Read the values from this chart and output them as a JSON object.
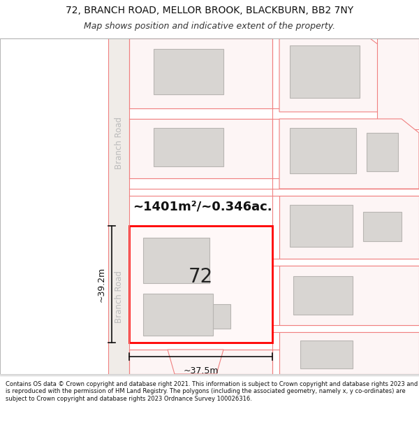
{
  "title_line1": "72, BRANCH ROAD, MELLOR BROOK, BLACKBURN, BB2 7NY",
  "title_line2": "Map shows position and indicative extent of the property.",
  "footer_text": "Contains OS data © Crown copyright and database right 2021. This information is subject to Crown copyright and database rights 2023 and is reproduced with the permission of HM Land Registry. The polygons (including the associated geometry, namely x, y co-ordinates) are subject to Crown copyright and database rights 2023 Ordnance Survey 100026316.",
  "map_bg": "#ffffff",
  "plot_outline_color": "#ff0000",
  "building_fill": "#d8d5d2",
  "building_edge": "#b8b5b2",
  "property_label": "72",
  "area_label": "~1401m²/~0.346ac.",
  "width_label": "~37.5m",
  "height_label": "~39.2m",
  "road_label_top": "Branch Road",
  "road_label_bottom": "Branch Road",
  "dim_line_color": "#111111",
  "neighbor_outline": "#f08080",
  "neighbor_fill": "#fdf5f5",
  "road_fill": "#f0ece8"
}
